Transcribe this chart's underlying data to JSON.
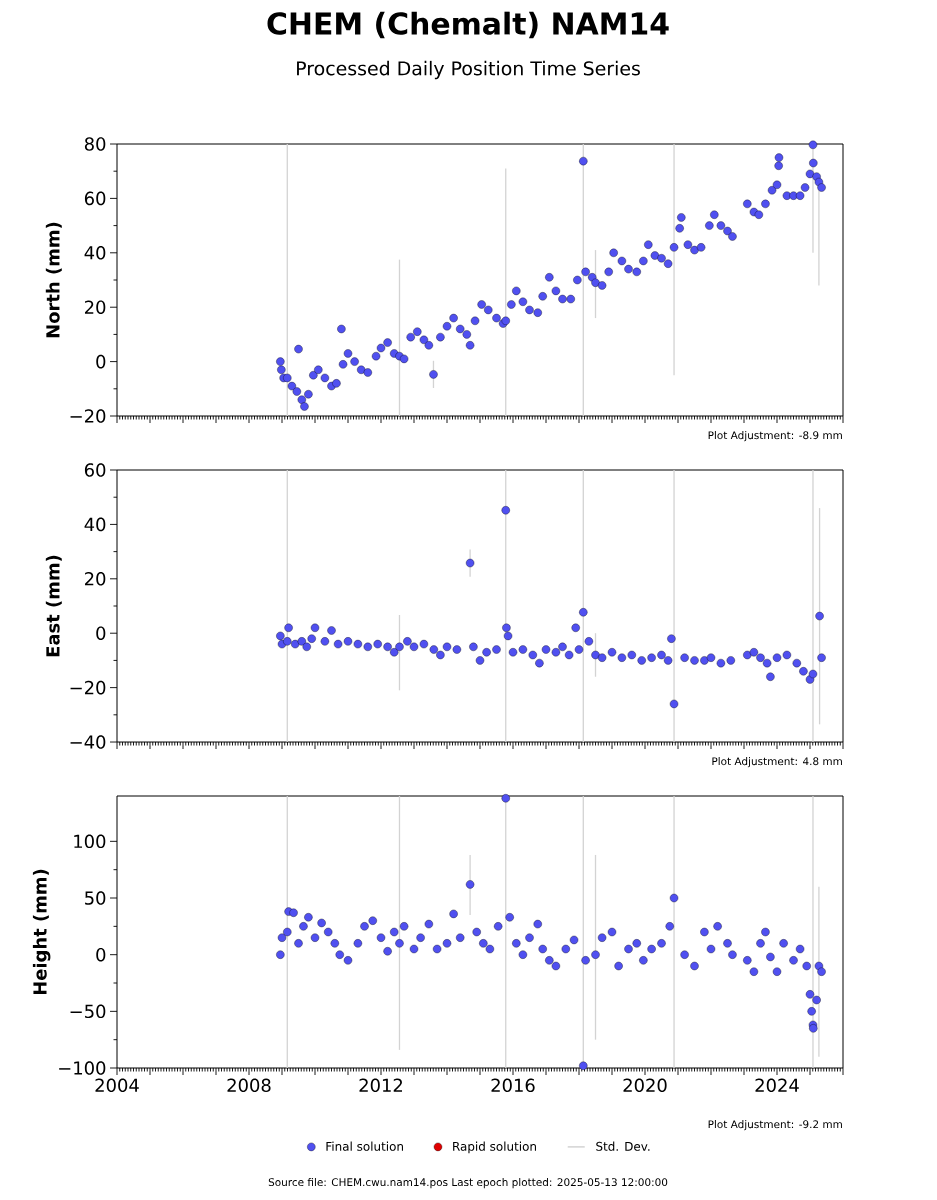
{
  "chart_data": [
    {
      "type": "scatter",
      "title": "CHEM (Chemalt) NAM14",
      "subtitle": "Processed Daily Position Time Series",
      "ylabel": "North (mm)",
      "annotations": [
        "Plot Adjustment: -8.9 mm"
      ],
      "xlim": [
        2004,
        2026
      ],
      "xticks": [
        2004,
        {
          "value": 2005,
          "label": null
        },
        {
          "value": 2006,
          "label": null
        },
        {
          "value": 2007,
          "label": null
        },
        2008,
        {
          "value": 2009,
          "label": null
        },
        {
          "value": 2010,
          "label": null
        },
        {
          "value": 2011,
          "label": null
        },
        2012,
        {
          "value": 2013,
          "label": null
        },
        {
          "value": 2014,
          "label": null
        },
        {
          "value": 2015,
          "label": null
        },
        2016,
        {
          "value": 2017,
          "label": null
        },
        {
          "value": 2018,
          "label": null
        },
        {
          "value": 2019,
          "label": null
        },
        2020,
        {
          "value": 2021,
          "label": null
        },
        {
          "value": 2022,
          "label": null
        },
        {
          "value": 2023,
          "label": null
        },
        2024,
        {
          "value": 2025,
          "label": null
        },
        {
          "value": 2026,
          "label": null
        }
      ],
      "ylim": [
        -20,
        80
      ],
      "yticks": [
        {
          "value": -20,
          "label": "−20"
        },
        0,
        20,
        40,
        60,
        80
      ],
      "tick_labels": "y",
      "marker": "circle",
      "series": [
        {
          "color": "#5050f0",
          "x": [
            2008.95,
            2008.98,
            2009.05,
            2009.16,
            2009.3,
            2009.45,
            2009.5,
            2009.6,
            2009.68,
            2009.8,
            2009.95,
            2010.1,
            2010.3,
            2010.5,
            2010.65,
            2010.8,
            2010.85,
            2011.0,
            2011.2,
            2011.4,
            2011.6,
            2011.85,
            2012.0,
            2012.2,
            2012.4,
            2012.56,
            2012.7,
            2012.9,
            2013.1,
            2013.3,
            2013.45,
            2013.59,
            2013.8,
            2014.0,
            2014.2,
            2014.4,
            2014.6,
            2014.7,
            2014.85,
            2015.05,
            2015.25,
            2015.5,
            2015.7,
            2015.78,
            2015.95,
            2016.1,
            2016.3,
            2016.5,
            2016.75,
            2016.9,
            2017.1,
            2017.3,
            2017.5,
            2017.75,
            2017.95,
            2018.13,
            2018.2,
            2018.4,
            2018.5,
            2018.7,
            2018.9,
            2019.05,
            2019.3,
            2019.5,
            2019.75,
            2019.95,
            2020.1,
            2020.3,
            2020.5,
            2020.7,
            2020.88,
            2021.05,
            2021.1,
            2021.3,
            2021.5,
            2021.7,
            2021.95,
            2022.1,
            2022.3,
            2022.5,
            2022.65,
            2023.1,
            2023.3,
            2023.45,
            2023.65,
            2023.85,
            2024.0,
            2024.05,
            2024.06,
            2024.3,
            2024.5,
            2024.7,
            2024.85,
            2025.0,
            2025.09,
            2025.1,
            2025.2,
            2025.27,
            2025.35
          ],
          "values": [
            0,
            -3,
            -6,
            -6,
            -9,
            -11,
            4.6,
            -14,
            -16.5,
            -12,
            -5,
            -3,
            -6,
            -9,
            -8,
            12,
            -1,
            3,
            0,
            -3,
            -4,
            2,
            5,
            7,
            3,
            2,
            1,
            9,
            11,
            8,
            6,
            -4.7,
            9,
            13,
            16,
            12,
            10,
            6,
            15,
            21,
            19,
            16,
            14,
            15,
            21,
            26,
            22,
            19,
            18,
            24,
            31,
            26,
            23,
            23,
            30,
            73.7,
            33,
            31,
            29,
            28,
            33,
            40,
            37,
            34,
            33,
            37,
            43,
            39,
            38,
            36,
            42,
            49,
            53,
            43,
            41,
            42,
            50,
            54,
            50,
            48,
            46,
            58,
            55,
            54,
            58,
            63,
            65,
            72,
            75,
            61,
            61,
            61,
            64,
            69,
            79.7,
            73,
            68,
            66,
            64
          ],
          "errors": [
            null,
            null,
            null,
            [
              -20,
              80
            ],
            null,
            null,
            null,
            null,
            null,
            null,
            null,
            null,
            null,
            null,
            null,
            null,
            null,
            null,
            null,
            null,
            null,
            null,
            null,
            null,
            null,
            [
              -20,
              37.5
            ],
            null,
            null,
            null,
            null,
            null,
            [
              -9.7,
              0.3
            ],
            null,
            null,
            null,
            null,
            null,
            null,
            null,
            null,
            null,
            null,
            null,
            [
              -20,
              71
            ],
            null,
            null,
            null,
            null,
            null,
            null,
            null,
            null,
            null,
            null,
            null,
            [
              -20,
              80
            ],
            null,
            null,
            [
              16,
              41
            ],
            null,
            null,
            null,
            null,
            null,
            null,
            null,
            null,
            null,
            null,
            null,
            [
              -5,
              80
            ],
            null,
            null,
            null,
            null,
            null,
            null,
            null,
            null,
            null,
            null,
            null,
            null,
            null,
            null,
            null,
            null,
            null,
            null,
            null,
            null,
            null,
            null,
            null,
            [
              40,
              80
            ],
            null,
            null,
            [
              28,
              68
            ],
            null
          ]
        }
      ]
    },
    {
      "type": "scatter",
      "ylabel": "East (mm)",
      "annotations": [
        "Plot Adjustment: 4.8 mm"
      ],
      "xlim": [
        2004,
        2026
      ],
      "xticks": [
        2004,
        {
          "value": 2005,
          "label": null
        },
        {
          "value": 2006,
          "label": null
        },
        {
          "value": 2007,
          "label": null
        },
        2008,
        {
          "value": 2009,
          "label": null
        },
        {
          "value": 2010,
          "label": null
        },
        {
          "value": 2011,
          "label": null
        },
        2012,
        {
          "value": 2013,
          "label": null
        },
        {
          "value": 2014,
          "label": null
        },
        {
          "value": 2015,
          "label": null
        },
        2016,
        {
          "value": 2017,
          "label": null
        },
        {
          "value": 2018,
          "label": null
        },
        {
          "value": 2019,
          "label": null
        },
        2020,
        {
          "value": 2021,
          "label": null
        },
        {
          "value": 2022,
          "label": null
        },
        {
          "value": 2023,
          "label": null
        },
        2024,
        {
          "value": 2025,
          "label": null
        },
        {
          "value": 2026,
          "label": null
        }
      ],
      "ylim": [
        -40,
        60
      ],
      "yticks": [
        {
          "value": -40,
          "label": "−40"
        },
        {
          "value": -20,
          "label": "−20"
        },
        0,
        20,
        40,
        60
      ],
      "tick_labels": "y",
      "marker": "circle",
      "series": [
        {
          "color": "#5050f0",
          "x": [
            2008.95,
            2009.0,
            2009.16,
            2009.2,
            2009.4,
            2009.6,
            2009.75,
            2009.9,
            2010.0,
            2010.3,
            2010.5,
            2010.7,
            2011.0,
            2011.3,
            2011.6,
            2011.9,
            2012.2,
            2012.4,
            2012.56,
            2012.8,
            2013.0,
            2013.3,
            2013.6,
            2013.8,
            2014.0,
            2014.3,
            2014.7,
            2014.8,
            2015.0,
            2015.2,
            2015.5,
            2015.78,
            2015.8,
            2015.85,
            2016.0,
            2016.3,
            2016.6,
            2016.8,
            2017.0,
            2017.3,
            2017.5,
            2017.7,
            2017.9,
            2018.0,
            2018.13,
            2018.3,
            2018.5,
            2018.7,
            2019.0,
            2019.3,
            2019.6,
            2019.9,
            2020.2,
            2020.5,
            2020.7,
            2020.8,
            2020.88,
            2021.2,
            2021.5,
            2021.8,
            2022.0,
            2022.3,
            2022.6,
            2023.1,
            2023.3,
            2023.5,
            2023.7,
            2023.8,
            2024.0,
            2024.3,
            2024.6,
            2024.8,
            2025.0,
            2025.09,
            2025.29,
            2025.35
          ],
          "values": [
            -1,
            -4,
            -3,
            2,
            -4,
            -3,
            -5,
            -2,
            2,
            -3,
            1,
            -4,
            -3,
            -4,
            -5,
            -4,
            -5,
            -7,
            -5,
            -3,
            -5,
            -4,
            -6,
            -8,
            -5,
            -6,
            25.8,
            -5,
            -10,
            -7,
            -6,
            45.2,
            2,
            -1,
            -7,
            -6,
            -8,
            -11,
            -6,
            -7,
            -5,
            -8,
            2,
            -6,
            7.7,
            -3,
            -8,
            -9,
            -7,
            -9,
            -8,
            -10,
            -9,
            -8,
            -10,
            -2,
            -26,
            -9,
            -10,
            -10,
            -9,
            -11,
            -10,
            -8,
            -7,
            -9,
            -11,
            -16,
            -9,
            -8,
            -11,
            -14,
            -17,
            -15,
            6.3,
            -9
          ],
          "errors": [
            null,
            null,
            [
              -40,
              60
            ],
            null,
            null,
            null,
            null,
            null,
            null,
            null,
            null,
            null,
            null,
            null,
            null,
            null,
            null,
            null,
            [
              -21,
              6.7
            ],
            null,
            null,
            null,
            null,
            null,
            null,
            null,
            [
              20.8,
              30.8
            ],
            null,
            null,
            null,
            null,
            [
              -40,
              60
            ],
            null,
            null,
            null,
            null,
            null,
            null,
            null,
            null,
            null,
            null,
            null,
            null,
            [
              -40,
              60
            ],
            null,
            [
              -16,
              0
            ],
            null,
            null,
            null,
            null,
            null,
            null,
            null,
            null,
            null,
            [
              -40,
              60
            ],
            null,
            null,
            null,
            null,
            null,
            null,
            null,
            null,
            null,
            null,
            null,
            null,
            null,
            null,
            null,
            null,
            [
              -40,
              60
            ],
            [
              -33.5,
              46
            ],
            null
          ]
        }
      ]
    },
    {
      "type": "scatter",
      "ylabel": "Height (mm)",
      "annotations": [
        "Plot Adjustment: -9.2 mm",
        "Source file: CHEM.cwu.nam14.pos  Last epoch plotted: 2025-05-13 12:00:00"
      ],
      "xlim": [
        2004,
        2026
      ],
      "xticks": [
        2004,
        {
          "value": 2005,
          "label": null
        },
        {
          "value": 2006,
          "label": null
        },
        {
          "value": 2007,
          "label": null
        },
        2008,
        {
          "value": 2009,
          "label": null
        },
        {
          "value": 2010,
          "label": null
        },
        {
          "value": 2011,
          "label": null
        },
        2012,
        {
          "value": 2013,
          "label": null
        },
        {
          "value": 2014,
          "label": null
        },
        {
          "value": 2015,
          "label": null
        },
        2016,
        {
          "value": 2017,
          "label": null
        },
        {
          "value": 2018,
          "label": null
        },
        {
          "value": 2019,
          "label": null
        },
        2020,
        {
          "value": 2021,
          "label": null
        },
        {
          "value": 2022,
          "label": null
        },
        {
          "value": 2023,
          "label": null
        },
        2024,
        {
          "value": 2025,
          "label": null
        },
        {
          "value": 2026,
          "label": null
        }
      ],
      "ylim": [
        -100,
        140
      ],
      "yticks": [
        {
          "value": -100,
          "label": "−100"
        },
        {
          "value": -50,
          "label": "−50"
        },
        0,
        50,
        100
      ],
      "marker": "circle",
      "legend": "bottom",
      "series": [
        {
          "name": "Final solution",
          "color": "#5050f0",
          "x": [
            2008.95,
            2009.0,
            2009.16,
            2009.2,
            2009.35,
            2009.5,
            2009.65,
            2009.8,
            2010.0,
            2010.2,
            2010.4,
            2010.6,
            2010.75,
            2011.0,
            2011.3,
            2011.5,
            2011.75,
            2012.0,
            2012.2,
            2012.4,
            2012.56,
            2012.7,
            2013.0,
            2013.2,
            2013.45,
            2013.7,
            2014.0,
            2014.2,
            2014.4,
            2014.7,
            2014.9,
            2015.1,
            2015.3,
            2015.55,
            2015.78,
            2015.9,
            2016.1,
            2016.3,
            2016.5,
            2016.75,
            2016.9,
            2017.1,
            2017.3,
            2017.6,
            2017.85,
            2018.13,
            2018.2,
            2018.5,
            2018.7,
            2019.0,
            2019.2,
            2019.5,
            2019.75,
            2019.95,
            2020.2,
            2020.5,
            2020.75,
            2020.88,
            2021.2,
            2021.5,
            2021.8,
            2022.0,
            2022.2,
            2022.5,
            2022.65,
            2023.1,
            2023.3,
            2023.5,
            2023.65,
            2023.8,
            2024.0,
            2024.2,
            2024.5,
            2024.7,
            2024.9,
            2025.0,
            2025.05,
            2025.09,
            2025.1,
            2025.2,
            2025.27,
            2025.35
          ],
          "values": [
            0,
            15,
            20,
            38,
            37,
            10,
            25,
            33,
            15,
            28,
            20,
            10,
            0,
            -5,
            10,
            25,
            30,
            15,
            3,
            20,
            10,
            25,
            5,
            15,
            27,
            5,
            10,
            36,
            15,
            62,
            20,
            10,
            5,
            25,
            138,
            33,
            10,
            0,
            15,
            27,
            5,
            -5,
            -10,
            5,
            13,
            -98,
            -5,
            0,
            15,
            20,
            -10,
            5,
            10,
            -5,
            5,
            10,
            25,
            50,
            0,
            -10,
            20,
            5,
            25,
            10,
            0,
            -5,
            -15,
            10,
            20,
            -2,
            -15,
            10,
            -5,
            5,
            -10,
            -35,
            -50,
            -62,
            -65,
            -40,
            -10,
            -15
          ],
          "errors": [
            null,
            null,
            [
              -100,
              140
            ],
            null,
            null,
            null,
            null,
            null,
            null,
            null,
            null,
            null,
            null,
            null,
            null,
            null,
            null,
            null,
            null,
            null,
            [
              -84,
              140
            ],
            null,
            null,
            null,
            null,
            null,
            null,
            null,
            null,
            [
              35,
              88
            ],
            null,
            null,
            null,
            null,
            [
              -100,
              140
            ],
            null,
            null,
            null,
            null,
            null,
            null,
            null,
            null,
            null,
            null,
            [
              -100,
              140
            ],
            null,
            [
              -75,
              88
            ],
            null,
            null,
            null,
            null,
            null,
            null,
            null,
            null,
            null,
            [
              -100,
              140
            ],
            null,
            null,
            null,
            null,
            null,
            null,
            null,
            null,
            null,
            null,
            null,
            null,
            null,
            null,
            null,
            null,
            null,
            null,
            null,
            [
              -100,
              140
            ],
            null,
            null,
            [
              -90,
              60
            ],
            null
          ]
        },
        {
          "name": "Rapid solution",
          "color": "#e00000"
        },
        {
          "name": "Std. Dev.",
          "type": "line",
          "color": "#d3d3d3"
        }
      ]
    }
  ]
}
